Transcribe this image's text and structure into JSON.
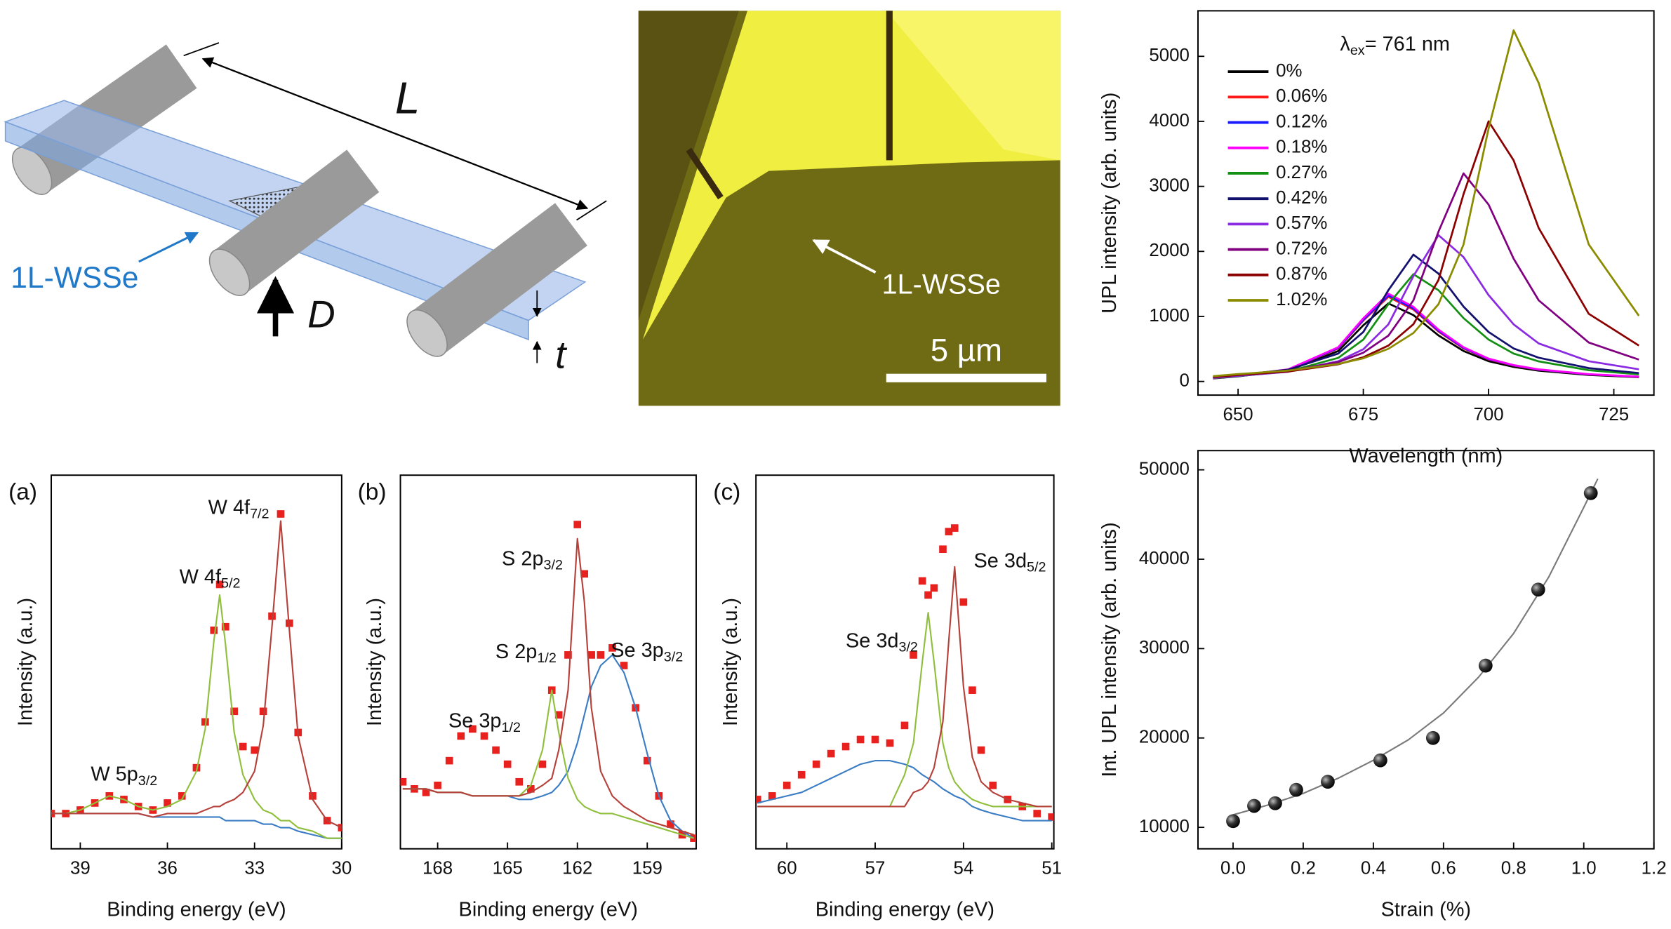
{
  "figure": {
    "schematic": {
      "length": "L",
      "material": "1L-WSSe",
      "deflection": "D",
      "thickness": "t"
    },
    "micrograph": {
      "label": "1L-WSSe",
      "scale_bar": "5 µm"
    }
  },
  "chart_data": [
    {
      "type": "line",
      "xlabel": "Wavelength (nm)",
      "ylabel": "UPL intensity (arb. units)",
      "annotations": [
        {
          "text": "λ",
          "sub": "ex",
          "tail": "= 761 nm"
        }
      ],
      "legend": "upper-left",
      "x": [
        645,
        650,
        660,
        670,
        675,
        680,
        685,
        690,
        695,
        700,
        705,
        710,
        720,
        730
      ],
      "series": [
        {
          "name": "0%",
          "color": "#000000",
          "values": [
            46,
            79,
            166,
            468,
            864,
            1200,
            1020,
            708,
            468,
            312,
            224,
            166,
            100,
            66
          ]
        },
        {
          "name": "0.06%",
          "color": "#ff1a1a",
          "values": [
            49,
            86,
            179,
            507,
            936,
            1300,
            1105,
            767,
            507,
            338,
            243,
            179,
            108,
            72
          ]
        },
        {
          "name": "0.12%",
          "color": "#1a1aff",
          "values": [
            50,
            87,
            182,
            515,
            950,
            1320,
            1122,
            779,
            515,
            343,
            247,
            182,
            110,
            73
          ]
        },
        {
          "name": "0.18%",
          "color": "#ff00ff",
          "values": [
            51,
            89,
            186,
            527,
            972,
            1350,
            1148,
            797,
            527,
            351,
            252,
            186,
            112,
            74
          ]
        },
        {
          "name": "0.27%",
          "color": "#139013",
          "values": [
            51,
            83,
            153,
            363,
            644,
            1188,
            1650,
            1403,
            974,
            644,
            429,
            309,
            173,
            109
          ]
        },
        {
          "name": "0.42%",
          "color": "#12126e",
          "values": [
            60,
            98,
            181,
            429,
            761,
            1404,
            1950,
            1658,
            1151,
            761,
            507,
            365,
            205,
            129
          ]
        },
        {
          "name": "0.57%",
          "color": "#8a2be2",
          "values": [
            56,
            86,
            149,
            311,
            495,
            878,
            1620,
            2250,
            1913,
            1328,
            878,
            585,
            311,
            187
          ]
        },
        {
          "name": "0.72%",
          "color": "#800080",
          "values": [
            67,
            99,
            160,
            298,
            442,
            704,
            1248,
            2304,
            3200,
            2720,
            1888,
            1248,
            598,
            336
          ]
        },
        {
          "name": "0.87%",
          "color": "#8b0000",
          "values": [
            68,
            100,
            152,
            264,
            372,
            552,
            880,
            1560,
            2880,
            4000,
            3400,
            2360,
            1040,
            552
          ]
        },
        {
          "name": "1.02%",
          "color": "#8b8b00",
          "values": [
            81,
            113,
            167,
            270,
            356,
            502,
            745,
            1188,
            2106,
            3888,
            5400,
            4590,
            2106,
            1010
          ]
        }
      ],
      "xlim": [
        642,
        733
      ],
      "ylim": [
        -210,
        5700
      ],
      "xticks": [
        650,
        675,
        700,
        725
      ],
      "yticks": [
        0,
        1000,
        2000,
        3000,
        4000,
        5000
      ]
    },
    {
      "type": "scatter",
      "panel_label": "(a)",
      "xlabel": "Binding energy (eV)",
      "ylabel": "Intensity (a.u.)",
      "marker": "square",
      "color": "#e8211f",
      "annotations": [
        {
          "text": "W 4f",
          "sub": "7/2"
        },
        {
          "text": "W 4f",
          "sub": "5/2"
        },
        {
          "text": "W 5p",
          "sub": "3/2"
        }
      ],
      "x": [
        40,
        39.5,
        39,
        38.5,
        38,
        37.5,
        37,
        36.5,
        36,
        35.5,
        35,
        34.7,
        34.4,
        34.2,
        34,
        33.7,
        33.4,
        33,
        32.7,
        32.4,
        32.1,
        31.8,
        31.5,
        31,
        30.5,
        30
      ],
      "values": [
        10,
        10,
        11,
        13,
        15,
        14,
        12,
        11,
        13,
        15,
        23,
        36,
        62,
        75,
        63,
        39,
        29,
        28,
        39,
        66,
        95,
        64,
        33,
        15,
        8,
        6
      ],
      "series": [
        {
          "color": "#3b7dc4",
          "values": [
            10,
            10,
            10,
            10,
            10,
            10,
            10,
            9,
            9,
            9,
            9,
            9,
            9,
            9,
            8,
            8,
            8,
            8,
            7,
            7,
            6,
            6,
            5,
            4,
            3,
            3
          ]
        },
        {
          "color": "#8fbf3c",
          "values": [
            10,
            10,
            11,
            13,
            15,
            14,
            12,
            11,
            12,
            14,
            22,
            34,
            59,
            72,
            58,
            33,
            21,
            14,
            11,
            10,
            8,
            8,
            6,
            5,
            3,
            3
          ]
        },
        {
          "color": "#b5413a",
          "values": [
            10,
            10,
            10,
            10,
            10,
            10,
            10,
            9,
            10,
            10,
            10,
            11,
            12,
            12,
            13,
            14,
            16,
            22,
            35,
            63,
            93,
            62,
            32,
            14,
            8,
            6
          ]
        }
      ],
      "xlim": [
        40,
        30
      ],
      "ylim": [
        0,
        106
      ],
      "xticks": [
        39,
        36,
        33,
        30
      ]
    },
    {
      "type": "scatter",
      "panel_label": "(b)",
      "xlabel": "Binding energy (eV)",
      "ylabel": "Intensity (a.u.)",
      "marker": "square",
      "color": "#e8211f",
      "annotations": [
        {
          "text": "S 2p",
          "sub": "3/2"
        },
        {
          "text": "S 2p",
          "sub": "1/2"
        },
        {
          "text": "Se 3p",
          "sub": "3/2"
        },
        {
          "text": "Se 3p",
          "sub": "1/2"
        }
      ],
      "x": [
        169.5,
        169,
        168.5,
        168,
        167.5,
        167,
        166.5,
        166,
        165.5,
        165,
        164.5,
        164,
        163.5,
        163.1,
        162.8,
        162.4,
        162,
        161.7,
        161.4,
        161,
        160.5,
        160,
        159.5,
        159,
        158.5,
        158,
        157.5,
        157
      ],
      "values": [
        19,
        17,
        16,
        18,
        25,
        32,
        34,
        32,
        28,
        24,
        19,
        17,
        24,
        45,
        38,
        55,
        92,
        78,
        55,
        55,
        57,
        52,
        40,
        25,
        15,
        7,
        4,
        3
      ],
      "series": [
        {
          "color": "#3b7dc4",
          "values": [
            17,
            17,
            17,
            16,
            16,
            16,
            15,
            15,
            15,
            15,
            14,
            14,
            15,
            16,
            18,
            22,
            30,
            38,
            46,
            52,
            55,
            50,
            40,
            27,
            15,
            8,
            5,
            3
          ]
        },
        {
          "color": "#8fbf3c",
          "values": [
            17,
            17,
            17,
            16,
            16,
            16,
            15,
            15,
            15,
            15,
            15,
            18,
            28,
            45,
            33,
            20,
            14,
            12,
            11,
            10,
            10,
            9,
            8,
            7,
            6,
            5,
            4,
            3
          ]
        },
        {
          "color": "#b5413a",
          "values": [
            17,
            17,
            17,
            16,
            16,
            16,
            15,
            15,
            15,
            15,
            15,
            16,
            18,
            20,
            28,
            45,
            88,
            70,
            40,
            22,
            15,
            12,
            10,
            8,
            7,
            6,
            5,
            4
          ]
        }
      ],
      "xlim": [
        169.6,
        156.9
      ],
      "ylim": [
        0,
        106
      ],
      "xticks": [
        168,
        165,
        162,
        159
      ]
    },
    {
      "type": "scatter",
      "panel_label": "(c)",
      "xlabel": "Binding energy (eV)",
      "ylabel": "Intensity (a.u.)",
      "marker": "square",
      "color": "#e8211f",
      "annotations": [
        {
          "text": "Se 3d",
          "sub": "5/2"
        },
        {
          "text": "Se 3d",
          "sub": "3/2"
        }
      ],
      "x": [
        61,
        60.5,
        60,
        59.5,
        59,
        58.5,
        58,
        57.5,
        57,
        56.5,
        56,
        55.7,
        55.4,
        55.2,
        55,
        54.7,
        54.5,
        54.3,
        54,
        53.7,
        53.4,
        53,
        52.5,
        52,
        51.5,
        51
      ],
      "values": [
        14,
        15,
        18,
        21,
        24,
        27,
        29,
        31,
        31,
        30,
        35,
        55,
        76,
        72,
        74,
        85,
        90,
        91,
        70,
        45,
        28,
        18,
        14,
        12,
        10,
        9
      ],
      "series": [
        {
          "color": "#3b7dc4",
          "values": [
            13,
            14,
            15,
            16,
            18,
            20,
            22,
            24,
            25,
            25,
            24,
            23,
            21,
            20,
            19,
            17,
            16,
            15,
            14,
            12,
            11,
            10,
            9,
            8,
            8,
            8
          ]
        },
        {
          "color": "#8fbf3c",
          "values": [
            12,
            12,
            12,
            12,
            12,
            12,
            12,
            12,
            12,
            12,
            21,
            30,
            53,
            67,
            53,
            30,
            23,
            19,
            16,
            14,
            13,
            12,
            12,
            12,
            12,
            12
          ]
        },
        {
          "color": "#b5413a",
          "values": [
            12,
            12,
            12,
            12,
            12,
            12,
            12,
            12,
            12,
            12,
            12,
            16,
            17,
            19,
            23,
            36,
            59,
            80,
            46,
            26,
            19,
            16,
            14,
            13,
            12,
            12
          ]
        }
      ],
      "xlim": [
        61.05,
        50.93
      ],
      "ylim": [
        0,
        106
      ],
      "xticks": [
        60,
        57,
        54,
        51
      ]
    },
    {
      "type": "scatter",
      "xlabel": "Strain (%)",
      "ylabel": "Int. UPL intensity (arb. units)",
      "marker": "circle",
      "color": "#2a2a2a",
      "x": [
        0,
        0.06,
        0.12,
        0.18,
        0.27,
        0.42,
        0.57,
        0.72,
        0.87,
        1.02
      ],
      "values": [
        10700,
        12400,
        12700,
        14200,
        15100,
        17500,
        20000,
        28100,
        36600,
        47400
      ],
      "series": [
        {
          "color": "#7a7a7a",
          "x": [
            0,
            0.1,
            0.2,
            0.3,
            0.4,
            0.5,
            0.6,
            0.7,
            0.8,
            0.9,
            1.0,
            1.04
          ],
          "values": [
            11400,
            12500,
            13800,
            15500,
            17500,
            19800,
            22800,
            26800,
            31700,
            38000,
            45800,
            49000
          ]
        }
      ],
      "xlim": [
        -0.1,
        1.2
      ],
      "ylim": [
        7600,
        52150
      ],
      "xticks": [
        {
          "value": 0,
          "label": "0.0"
        },
        0.2,
        0.4,
        0.6,
        0.8,
        {
          "value": 1,
          "label": "1.0"
        },
        1.2
      ],
      "yticks": [
        10000,
        20000,
        30000,
        40000,
        50000
      ]
    }
  ]
}
